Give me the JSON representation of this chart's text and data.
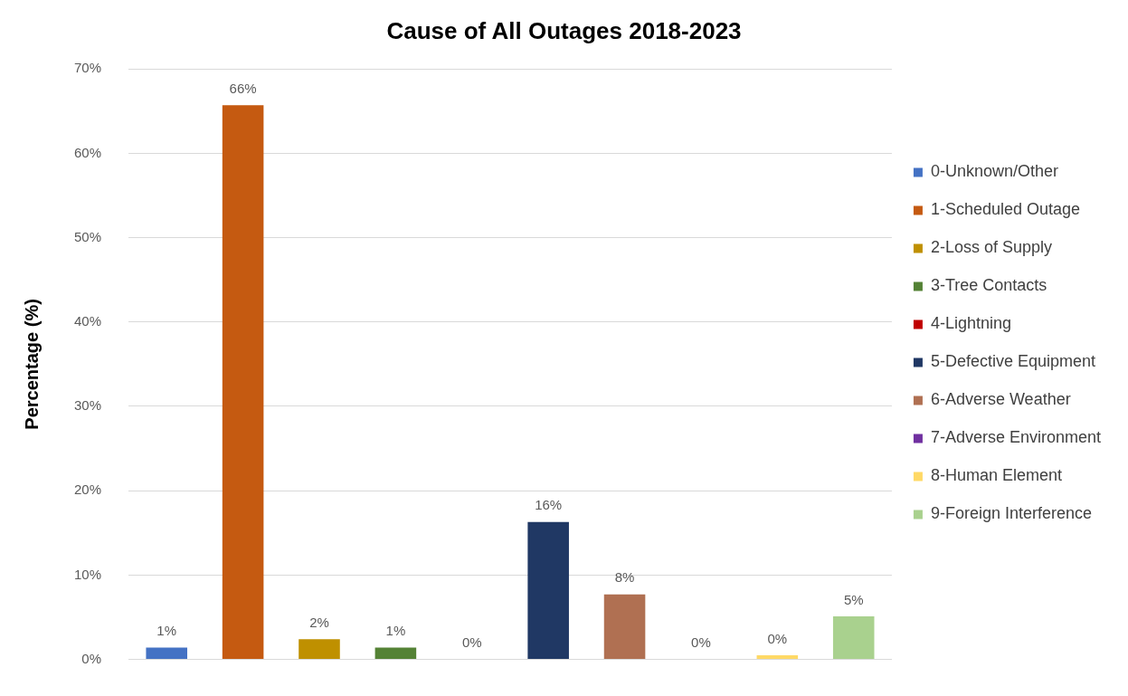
{
  "chart_data": {
    "type": "bar",
    "title": "Cause of All Outages 2018-2023",
    "ylabel": "Percentage (%)",
    "categories": [
      null,
      null,
      null,
      null,
      null,
      null,
      null,
      null,
      null,
      null
    ],
    "series": [
      {
        "name": "0-Unknown/Other",
        "color": "#4472c4",
        "values": [
          1.4,
          null,
          null,
          null,
          null,
          null,
          null,
          null,
          null,
          null
        ],
        "value_labels": [
          "1%",
          null,
          null,
          null,
          null,
          null,
          null,
          null,
          null,
          null
        ]
      },
      {
        "name": "1-Scheduled Outage",
        "color": "#c55a11",
        "values": [
          null,
          65.7,
          null,
          null,
          null,
          null,
          null,
          null,
          null,
          null
        ],
        "value_labels": [
          null,
          "66%",
          null,
          null,
          null,
          null,
          null,
          null,
          null,
          null
        ]
      },
      {
        "name": "2-Loss of Supply",
        "color": "#bf9000",
        "values": [
          null,
          null,
          2.4,
          null,
          null,
          null,
          null,
          null,
          null,
          null
        ],
        "value_labels": [
          null,
          null,
          "2%",
          null,
          null,
          null,
          null,
          null,
          null,
          null
        ]
      },
      {
        "name": "3-Tree Contacts",
        "color": "#548235",
        "values": [
          null,
          null,
          null,
          1.4,
          null,
          null,
          null,
          null,
          null,
          null
        ],
        "value_labels": [
          null,
          null,
          null,
          "1%",
          null,
          null,
          null,
          null,
          null,
          null
        ]
      },
      {
        "name": "4-Lightning",
        "color": "#c00000",
        "values": [
          null,
          null,
          null,
          null,
          0,
          null,
          null,
          null,
          null,
          null
        ],
        "value_labels": [
          null,
          null,
          null,
          null,
          "0%",
          null,
          null,
          null,
          null,
          null
        ]
      },
      {
        "name": "5-Defective Equipment",
        "color": "#203864",
        "values": [
          null,
          null,
          null,
          null,
          null,
          16.3,
          null,
          null,
          null,
          null
        ],
        "value_labels": [
          null,
          null,
          null,
          null,
          null,
          "16%",
          null,
          null,
          null,
          null
        ]
      },
      {
        "name": "6-Adverse Weather",
        "color": "#b07052",
        "values": [
          null,
          null,
          null,
          null,
          null,
          null,
          7.7,
          null,
          null,
          null
        ],
        "value_labels": [
          null,
          null,
          null,
          null,
          null,
          null,
          "8%",
          null,
          null,
          null
        ]
      },
      {
        "name": "7-Adverse Environment",
        "color": "#7030a0",
        "values": [
          null,
          null,
          null,
          null,
          null,
          null,
          null,
          0,
          null,
          null
        ],
        "value_labels": [
          null,
          null,
          null,
          null,
          null,
          null,
          null,
          "0%",
          null,
          null
        ]
      },
      {
        "name": "8-Human Element",
        "color": "#ffd966",
        "values": [
          null,
          null,
          null,
          null,
          null,
          null,
          null,
          null,
          0.5,
          null
        ],
        "value_labels": [
          null,
          null,
          null,
          null,
          null,
          null,
          null,
          null,
          "0%",
          null
        ]
      },
      {
        "name": "9-Foreign Interference",
        "color": "#a9d18e",
        "values": [
          null,
          null,
          null,
          null,
          null,
          null,
          null,
          null,
          null,
          5.1
        ],
        "value_labels": [
          null,
          null,
          null,
          null,
          null,
          null,
          null,
          null,
          null,
          "5%"
        ]
      }
    ],
    "ylim": [
      0,
      70
    ],
    "yticks": [
      {
        "value": 0,
        "label": "0%"
      },
      {
        "value": 10,
        "label": "10%"
      },
      {
        "value": 20,
        "label": "20%"
      },
      {
        "value": 30,
        "label": "30%"
      },
      {
        "value": 40,
        "label": "40%"
      },
      {
        "value": 50,
        "label": "50%"
      },
      {
        "value": 60,
        "label": "60%"
      },
      {
        "value": 70,
        "label": "70%"
      }
    ],
    "grid": "y",
    "legend": "right"
  }
}
